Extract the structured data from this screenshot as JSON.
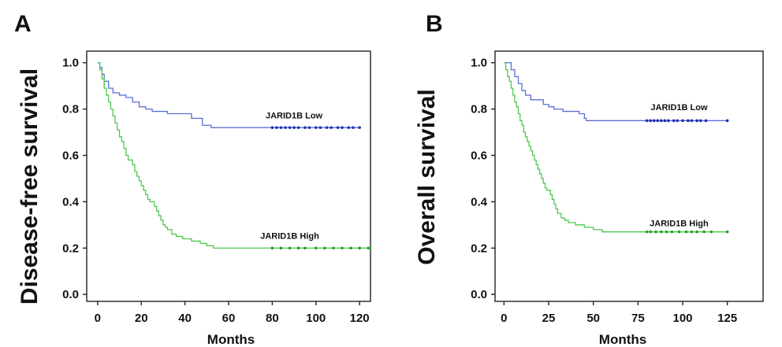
{
  "chart_data": [
    {
      "panel_label": "A",
      "type": "line",
      "step": true,
      "ylabel": "Disease-free survival",
      "xlabel": "Months",
      "xlim": [
        -5,
        125
      ],
      "ylim": [
        -0.03,
        1.05
      ],
      "xticks": [
        0,
        20,
        40,
        60,
        80,
        100,
        120
      ],
      "yticks": [
        "0.0",
        "0.2",
        "0.4",
        "0.6",
        "0.8",
        "1.0"
      ],
      "series": [
        {
          "name": "JARID1B Low",
          "color": "#5b6fd6",
          "label_at": [
            90,
            0.76
          ],
          "steps": [
            [
              0,
              1.0
            ],
            [
              1,
              0.98
            ],
            [
              2,
              0.95
            ],
            [
              3,
              0.92
            ],
            [
              5,
              0.89
            ],
            [
              7,
              0.87
            ],
            [
              10,
              0.86
            ],
            [
              13,
              0.85
            ],
            [
              16,
              0.83
            ],
            [
              19,
              0.81
            ],
            [
              22,
              0.8
            ],
            [
              25,
              0.79
            ],
            [
              32,
              0.78
            ],
            [
              43,
              0.76
            ],
            [
              48,
              0.73
            ],
            [
              52,
              0.72
            ],
            [
              120,
              0.72
            ]
          ],
          "censored": [
            80,
            82,
            84,
            86,
            88,
            90,
            92,
            95,
            97,
            100,
            102,
            105,
            107,
            110,
            112,
            115,
            117,
            120
          ]
        },
        {
          "name": "JARID1B High",
          "color": "#4fc84f",
          "label_at": [
            88,
            0.24
          ],
          "steps": [
            [
              0,
              1.0
            ],
            [
              1,
              0.97
            ],
            [
              2,
              0.93
            ],
            [
              3,
              0.89
            ],
            [
              4,
              0.86
            ],
            [
              5,
              0.83
            ],
            [
              6,
              0.8
            ],
            [
              7,
              0.77
            ],
            [
              8,
              0.74
            ],
            [
              9,
              0.71
            ],
            [
              10,
              0.68
            ],
            [
              11,
              0.66
            ],
            [
              12,
              0.63
            ],
            [
              13,
              0.6
            ],
            [
              14,
              0.58
            ],
            [
              16,
              0.56
            ],
            [
              17,
              0.53
            ],
            [
              18,
              0.51
            ],
            [
              19,
              0.49
            ],
            [
              20,
              0.47
            ],
            [
              21,
              0.45
            ],
            [
              22,
              0.43
            ],
            [
              23,
              0.41
            ],
            [
              24,
              0.4
            ],
            [
              26,
              0.38
            ],
            [
              27,
              0.36
            ],
            [
              28,
              0.34
            ],
            [
              29,
              0.32
            ],
            [
              30,
              0.3
            ],
            [
              31,
              0.29
            ],
            [
              32,
              0.28
            ],
            [
              34,
              0.26
            ],
            [
              36,
              0.25
            ],
            [
              39,
              0.24
            ],
            [
              43,
              0.23
            ],
            [
              47,
              0.22
            ],
            [
              50,
              0.21
            ],
            [
              53,
              0.2
            ],
            [
              125,
              0.2
            ]
          ],
          "censored": [
            80,
            84,
            88,
            92,
            95,
            100,
            104,
            108,
            112,
            116,
            120,
            124
          ]
        }
      ]
    },
    {
      "panel_label": "B",
      "type": "line",
      "step": true,
      "ylabel": "Overall survival",
      "xlabel": "Months",
      "xlim": [
        -5,
        145
      ],
      "ylim": [
        -0.03,
        1.05
      ],
      "xticks": [
        0,
        25,
        50,
        75,
        100,
        125
      ],
      "yticks": [
        "0.0",
        "0.2",
        "0.4",
        "0.6",
        "0.8",
        "1.0"
      ],
      "series": [
        {
          "name": "JARID1B Low",
          "color": "#5b6fd6",
          "label_at": [
            98,
            0.795
          ],
          "steps": [
            [
              0,
              1.0
            ],
            [
              4,
              0.97
            ],
            [
              6,
              0.94
            ],
            [
              8,
              0.91
            ],
            [
              10,
              0.88
            ],
            [
              12,
              0.86
            ],
            [
              15,
              0.84
            ],
            [
              22,
              0.82
            ],
            [
              25,
              0.81
            ],
            [
              28,
              0.8
            ],
            [
              33,
              0.79
            ],
            [
              42,
              0.78
            ],
            [
              45,
              0.76
            ],
            [
              46,
              0.75
            ],
            [
              125,
              0.75
            ]
          ],
          "censored": [
            80,
            82,
            84,
            86,
            88,
            90,
            92,
            95,
            97,
            100,
            103,
            105,
            108,
            110,
            113,
            125
          ]
        },
        {
          "name": "JARID1B High",
          "color": "#4fc84f",
          "label_at": [
            98,
            0.295
          ],
          "steps": [
            [
              0,
              1.0
            ],
            [
              1,
              0.97
            ],
            [
              2,
              0.94
            ],
            [
              3,
              0.92
            ],
            [
              4,
              0.89
            ],
            [
              5,
              0.86
            ],
            [
              6,
              0.83
            ],
            [
              7,
              0.81
            ],
            [
              8,
              0.78
            ],
            [
              9,
              0.75
            ],
            [
              10,
              0.73
            ],
            [
              11,
              0.7
            ],
            [
              12,
              0.68
            ],
            [
              13,
              0.66
            ],
            [
              14,
              0.64
            ],
            [
              15,
              0.62
            ],
            [
              16,
              0.6
            ],
            [
              17,
              0.58
            ],
            [
              18,
              0.56
            ],
            [
              19,
              0.54
            ],
            [
              20,
              0.52
            ],
            [
              21,
              0.5
            ],
            [
              22,
              0.48
            ],
            [
              23,
              0.46
            ],
            [
              24,
              0.45
            ],
            [
              26,
              0.43
            ],
            [
              27,
              0.41
            ],
            [
              28,
              0.39
            ],
            [
              29,
              0.37
            ],
            [
              30,
              0.35
            ],
            [
              32,
              0.33
            ],
            [
              34,
              0.32
            ],
            [
              36,
              0.31
            ],
            [
              40,
              0.3
            ],
            [
              45,
              0.29
            ],
            [
              50,
              0.28
            ],
            [
              55,
              0.27
            ],
            [
              125,
              0.27
            ]
          ],
          "censored": [
            80,
            82,
            85,
            88,
            91,
            94,
            98,
            102,
            105,
            108,
            112,
            116,
            125
          ]
        }
      ]
    }
  ]
}
